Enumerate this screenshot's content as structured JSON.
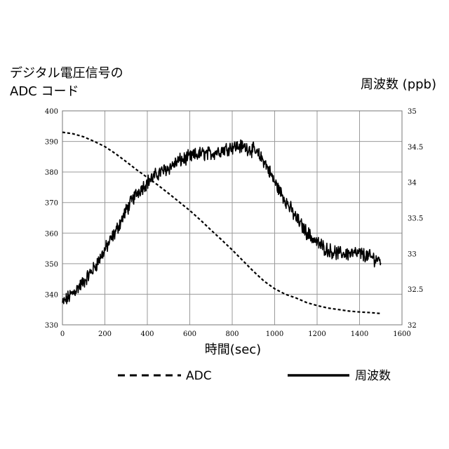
{
  "chart_data": {
    "type": "line",
    "ylabel_left": [
      "デジタル電圧信号の",
      "ADC コード"
    ],
    "ylabel_right": "周波数 (ppb)",
    "xlabel": "時間(sec)",
    "xlim": [
      0,
      1600
    ],
    "ylim_left": [
      330,
      400
    ],
    "ylim_right": [
      32,
      35
    ],
    "x_ticks": [
      0,
      200,
      400,
      600,
      800,
      1000,
      1200,
      1400,
      1600
    ],
    "y_ticks_left": [
      330,
      340,
      350,
      360,
      370,
      380,
      390,
      400
    ],
    "y_ticks_right": [
      32,
      32.5,
      33,
      33.5,
      34,
      34.5,
      35
    ],
    "grid": true,
    "legend_position": "bottom",
    "series": [
      {
        "name": "ADC",
        "style": "dashed",
        "axis": "left",
        "x": [
          0,
          50,
          100,
          150,
          200,
          250,
          300,
          350,
          400,
          450,
          500,
          550,
          600,
          650,
          700,
          750,
          800,
          850,
          900,
          950,
          1000,
          1050,
          1100,
          1150,
          1200,
          1250,
          1300,
          1350,
          1400,
          1450,
          1500
        ],
        "y": [
          393,
          392.5,
          391.5,
          390.0,
          388.3,
          386.0,
          383.4,
          380.7,
          378.2,
          375.7,
          373.0,
          370.2,
          367.4,
          364.3,
          361.0,
          357.8,
          354.5,
          351.0,
          347.5,
          344.3,
          341.8,
          340.0,
          338.8,
          337.3,
          336.3,
          335.5,
          335.0,
          334.5,
          334.2,
          334.0,
          333.7
        ]
      },
      {
        "name": "周波数",
        "style": "solid",
        "axis": "right",
        "x": [
          0,
          50,
          100,
          150,
          200,
          250,
          300,
          350,
          400,
          450,
          500,
          550,
          600,
          650,
          700,
          750,
          800,
          850,
          900,
          950,
          1000,
          1050,
          1100,
          1150,
          1200,
          1250,
          1300,
          1350,
          1400,
          1450,
          1500
        ],
        "y": [
          32.3,
          32.45,
          32.6,
          32.8,
          33.05,
          33.3,
          33.6,
          33.85,
          34.0,
          34.12,
          34.2,
          34.3,
          34.35,
          34.4,
          34.4,
          34.45,
          34.5,
          34.5,
          34.45,
          34.3,
          34.0,
          33.75,
          33.5,
          33.3,
          33.15,
          33.05,
          33.0,
          33.0,
          33.0,
          32.95,
          32.9
        ]
      }
    ]
  }
}
